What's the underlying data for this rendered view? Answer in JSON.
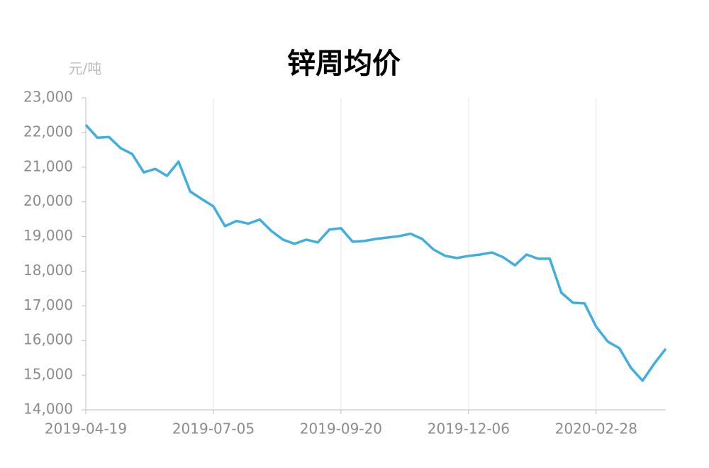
{
  "chart_data": {
    "type": "line",
    "title": "锌周均价",
    "y_unit": "元/吨",
    "categories": [
      "2019-04-19",
      null,
      null,
      null,
      null,
      null,
      null,
      null,
      null,
      null,
      null,
      "2019-07-05",
      null,
      null,
      null,
      null,
      null,
      null,
      null,
      null,
      null,
      null,
      "2019-09-20",
      null,
      null,
      null,
      null,
      null,
      null,
      null,
      null,
      null,
      null,
      "2019-12-06",
      null,
      null,
      null,
      null,
      null,
      null,
      null,
      null,
      null,
      null,
      "2020-02-28",
      null,
      null,
      null,
      null,
      null,
      null
    ],
    "series": [
      {
        "color": "#41aee0",
        "values": [
          22220,
          21850,
          21870,
          21550,
          21380,
          20850,
          20950,
          20750,
          21160,
          20300,
          20080,
          19870,
          19300,
          19450,
          19370,
          19490,
          19160,
          18910,
          18790,
          18910,
          18830,
          19200,
          19240,
          18850,
          18870,
          18930,
          18970,
          19010,
          19080,
          18930,
          18620,
          18440,
          18380,
          18440,
          18480,
          18540,
          18400,
          18170,
          18480,
          18360,
          18360,
          17380,
          17090,
          17070,
          16400,
          15970,
          15780,
          15210,
          14840,
          15330,
          15760
        ]
      }
    ],
    "ylim": [
      14000,
      23000
    ],
    "yticks": [
      {
        "value": 14000,
        "label": "14,000"
      },
      {
        "value": 15000,
        "label": "15,000"
      },
      {
        "value": 16000,
        "label": "16,000"
      },
      {
        "value": 17000,
        "label": "17,000"
      },
      {
        "value": 18000,
        "label": "18,000"
      },
      {
        "value": 19000,
        "label": "19,000"
      },
      {
        "value": 20000,
        "label": "20,000"
      },
      {
        "value": 21000,
        "label": "21,000"
      },
      {
        "value": 22000,
        "label": "22,000"
      },
      {
        "value": 23000,
        "label": "23,000"
      }
    ],
    "grid": "x"
  }
}
